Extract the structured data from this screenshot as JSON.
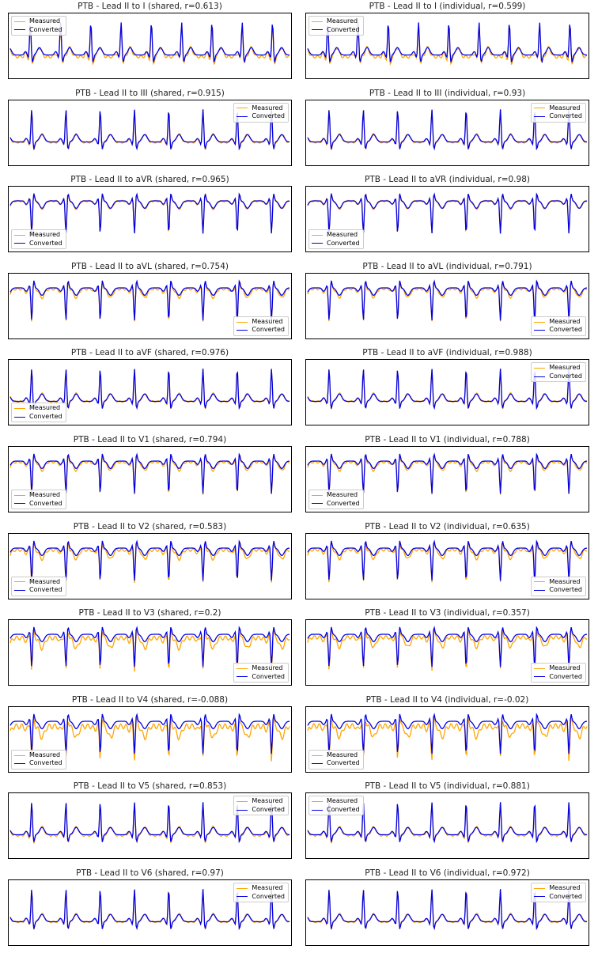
{
  "colors": {
    "measured": "#FFA500",
    "converted": "#0000E6"
  },
  "legend_labels": {
    "measured": "Measured",
    "converted": "Converted"
  },
  "chart_data": [
    {
      "type": "line",
      "title": "PTB - Lead II to I (shared, r=0.613)",
      "ecg": {
        "r_peaks": 9,
        "beat_period": 0.9,
        "r_amplitude": 1.0
      },
      "correlation": 0.613,
      "legend": "top-left",
      "series": [
        {
          "name": "Measured"
        },
        {
          "name": "Converted"
        }
      ]
    },
    {
      "type": "line",
      "title": "PTB - Lead II to I (individual, r=0.599)",
      "ecg": {
        "r_peaks": 9,
        "beat_period": 0.9,
        "r_amplitude": 1.0
      },
      "correlation": 0.599,
      "legend": "top-left",
      "series": [
        {
          "name": "Measured"
        },
        {
          "name": "Converted"
        }
      ]
    },
    {
      "type": "line",
      "title": "PTB - Lead II to III (shared, r=0.915)",
      "ecg": {
        "r_peaks": 8,
        "beat_period": 0.9,
        "r_amplitude": 1.0
      },
      "correlation": 0.915,
      "legend": "top-right",
      "series": [
        {
          "name": "Measured"
        },
        {
          "name": "Converted"
        }
      ]
    },
    {
      "type": "line",
      "title": "PTB - Lead II to III (individual, r=0.93)",
      "ecg": {
        "r_peaks": 8,
        "beat_period": 0.9,
        "r_amplitude": 1.0
      },
      "correlation": 0.93,
      "legend": "top-right",
      "series": [
        {
          "name": "Measured"
        },
        {
          "name": "Converted"
        }
      ]
    },
    {
      "type": "line",
      "title": "PTB - Lead II to aVR (shared, r=0.965)",
      "ecg": {
        "r_peaks": 8,
        "beat_period": 0.9,
        "r_amplitude": -1.0
      },
      "correlation": 0.965,
      "legend": "bottom-left",
      "series": [
        {
          "name": "Measured"
        },
        {
          "name": "Converted"
        }
      ]
    },
    {
      "type": "line",
      "title": "PTB - Lead II to aVR (individual, r=0.98)",
      "ecg": {
        "r_peaks": 8,
        "beat_period": 0.9,
        "r_amplitude": -1.0
      },
      "correlation": 0.98,
      "legend": "bottom-left",
      "series": [
        {
          "name": "Measured"
        },
        {
          "name": "Converted"
        }
      ]
    },
    {
      "type": "line",
      "title": "PTB - Lead II to aVL (shared, r=0.754)",
      "ecg": {
        "r_peaks": 8,
        "beat_period": 0.9,
        "r_amplitude": -1.0
      },
      "correlation": 0.754,
      "legend": "bottom-right",
      "series": [
        {
          "name": "Measured"
        },
        {
          "name": "Converted"
        }
      ]
    },
    {
      "type": "line",
      "title": "PTB - Lead II to aVL (individual, r=0.791)",
      "ecg": {
        "r_peaks": 8,
        "beat_period": 0.9,
        "r_amplitude": -1.0
      },
      "correlation": 0.791,
      "legend": "bottom-right",
      "series": [
        {
          "name": "Measured"
        },
        {
          "name": "Converted"
        }
      ]
    },
    {
      "type": "line",
      "title": "PTB - Lead II to aVF (shared, r=0.976)",
      "ecg": {
        "r_peaks": 8,
        "beat_period": 0.9,
        "r_amplitude": 1.0
      },
      "correlation": 0.976,
      "legend": "bottom-left",
      "series": [
        {
          "name": "Measured"
        },
        {
          "name": "Converted"
        }
      ]
    },
    {
      "type": "line",
      "title": "PTB - Lead II to aVF (individual, r=0.988)",
      "ecg": {
        "r_peaks": 8,
        "beat_period": 0.9,
        "r_amplitude": 1.0
      },
      "correlation": 0.988,
      "legend": "top-right",
      "series": [
        {
          "name": "Measured"
        },
        {
          "name": "Converted"
        }
      ]
    },
    {
      "type": "line",
      "title": "PTB - Lead II to V1 (shared, r=0.794)",
      "ecg": {
        "r_peaks": 8,
        "beat_period": 0.9,
        "r_amplitude": -1.0
      },
      "correlation": 0.794,
      "legend": "bottom-left",
      "series": [
        {
          "name": "Measured"
        },
        {
          "name": "Converted"
        }
      ]
    },
    {
      "type": "line",
      "title": "PTB - Lead II to V1 (individual, r=0.788)",
      "ecg": {
        "r_peaks": 8,
        "beat_period": 0.9,
        "r_amplitude": -1.0
      },
      "correlation": 0.788,
      "legend": "bottom-left",
      "series": [
        {
          "name": "Measured"
        },
        {
          "name": "Converted"
        }
      ]
    },
    {
      "type": "line",
      "title": "PTB - Lead II to V2 (shared, r=0.583)",
      "ecg": {
        "r_peaks": 8,
        "beat_period": 0.9,
        "r_amplitude": -1.0
      },
      "correlation": 0.583,
      "legend": "bottom-left",
      "series": [
        {
          "name": "Measured"
        },
        {
          "name": "Converted"
        }
      ]
    },
    {
      "type": "line",
      "title": "PTB - Lead II to V2 (individual, r=0.635)",
      "ecg": {
        "r_peaks": 8,
        "beat_period": 0.9,
        "r_amplitude": -1.0
      },
      "correlation": 0.635,
      "legend": "bottom-right",
      "series": [
        {
          "name": "Measured"
        },
        {
          "name": "Converted"
        }
      ]
    },
    {
      "type": "line",
      "title": "PTB - Lead II to V3 (shared, r=0.2)",
      "ecg": {
        "r_peaks": 8,
        "beat_period": 0.9,
        "r_amplitude": -1.0
      },
      "correlation": 0.2,
      "legend": "bottom-right",
      "series": [
        {
          "name": "Measured"
        },
        {
          "name": "Converted"
        }
      ]
    },
    {
      "type": "line",
      "title": "PTB - Lead II to V3 (individual, r=0.357)",
      "ecg": {
        "r_peaks": 8,
        "beat_period": 0.9,
        "r_amplitude": -1.0
      },
      "correlation": 0.357,
      "legend": "bottom-right",
      "series": [
        {
          "name": "Measured"
        },
        {
          "name": "Converted"
        }
      ]
    },
    {
      "type": "line",
      "title": "PTB - Lead II to V4 (shared, r=-0.088)",
      "ecg": {
        "r_peaks": 8,
        "beat_period": 0.9,
        "r_amplitude": -1.0
      },
      "correlation": -0.088,
      "legend": "bottom-left",
      "series": [
        {
          "name": "Measured"
        },
        {
          "name": "Converted"
        }
      ]
    },
    {
      "type": "line",
      "title": "PTB - Lead II to V4 (individual, r=-0.02)",
      "ecg": {
        "r_peaks": 8,
        "beat_period": 0.9,
        "r_amplitude": -1.0
      },
      "correlation": -0.02,
      "legend": "bottom-left",
      "series": [
        {
          "name": "Measured"
        },
        {
          "name": "Converted"
        }
      ]
    },
    {
      "type": "line",
      "title": "PTB - Lead II to V5 (shared, r=0.853)",
      "ecg": {
        "r_peaks": 8,
        "beat_period": 0.9,
        "r_amplitude": 1.0
      },
      "correlation": 0.853,
      "legend": "top-right",
      "series": [
        {
          "name": "Measured"
        },
        {
          "name": "Converted"
        }
      ]
    },
    {
      "type": "line",
      "title": "PTB - Lead II to V5 (individual, r=0.881)",
      "ecg": {
        "r_peaks": 8,
        "beat_period": 0.9,
        "r_amplitude": 1.0
      },
      "correlation": 0.881,
      "legend": "top-left",
      "series": [
        {
          "name": "Measured"
        },
        {
          "name": "Converted"
        }
      ]
    },
    {
      "type": "line",
      "title": "PTB - Lead II to V6 (shared, r=0.97)",
      "ecg": {
        "r_peaks": 8,
        "beat_period": 0.9,
        "r_amplitude": 1.0
      },
      "correlation": 0.97,
      "legend": "top-right",
      "series": [
        {
          "name": "Measured"
        },
        {
          "name": "Converted"
        }
      ]
    },
    {
      "type": "line",
      "title": "PTB - Lead II to V6 (individual, r=0.972)",
      "ecg": {
        "r_peaks": 8,
        "beat_period": 0.9,
        "r_amplitude": 1.0
      },
      "correlation": 0.972,
      "legend": "top-right",
      "series": [
        {
          "name": "Measured"
        },
        {
          "name": "Converted"
        }
      ]
    }
  ]
}
